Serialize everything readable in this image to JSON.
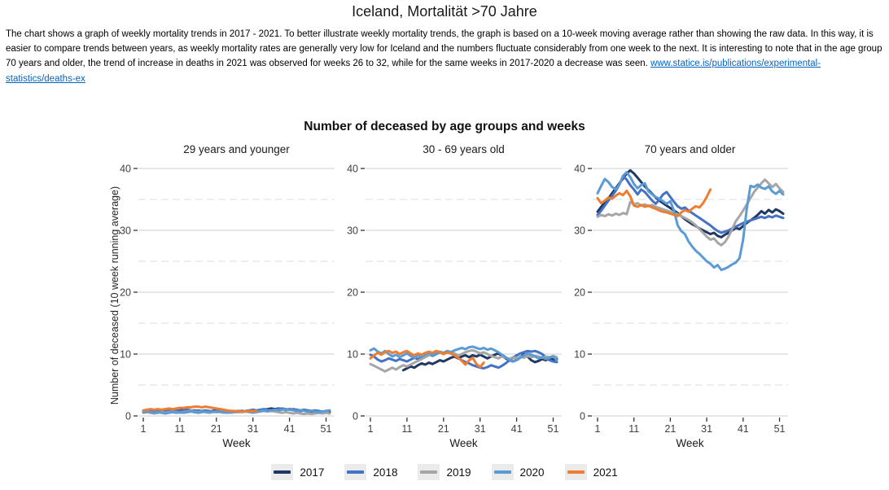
{
  "page": {
    "title": "Iceland, Mortalität >70 Jahre"
  },
  "description": {
    "text": "The chart shows a graph of weekly mortality trends in 2017 - 2021. To better illustrate weekly mortality trends, the graph is based on a 10-week moving average rather than showing the raw data. In this way, it is easier to compare trends between years, as weekly mortality rates are generally very low for Iceland and the numbers fluctuate considerably from one week to the next. It is interesting to note that in the age group 70 years and older, the trend of increase in deaths in 2021 was observed for weeks 26 to 32, while for the same weeks in 2017-2020 a decrease was seen. ",
    "link": "www.statice.is/publications/experimental-statistics/deaths-ex"
  },
  "legend": {
    "items": [
      {
        "label": "2017",
        "color": "#203864"
      },
      {
        "label": "2018",
        "color": "#4472C4"
      },
      {
        "label": "2019",
        "color": "#A6A6A6"
      },
      {
        "label": "2020",
        "color": "#5B9BD5"
      },
      {
        "label": "2021",
        "color": "#ED7D31"
      }
    ]
  },
  "chart_data": {
    "type": "line",
    "title": "Number of deceased by age groups and weeks",
    "xlabel": "Week",
    "ylabel": "Number of deceased (10 week running average)",
    "ylim": [
      0,
      40
    ],
    "y_ticks": [
      0,
      10,
      20,
      30,
      40
    ],
    "x_ticks": [
      1,
      11,
      21,
      31,
      41,
      51
    ],
    "x_range": [
      1,
      52
    ],
    "grid": {
      "major": "solid light gray",
      "minor": "dashed light gray at 5,15,25,35"
    },
    "legend_position": "bottom",
    "note": "values are 10-week running averages estimated from the plot",
    "panels": [
      {
        "label": "29 years and younger",
        "series": [
          {
            "name": "2017",
            "color": "#203864",
            "values": [
              0.7,
              0.8,
              0.7,
              0.8,
              0.9,
              0.8,
              0.7,
              0.8,
              0.9,
              0.8,
              0.9,
              1.0,
              0.9,
              0.8,
              0.9,
              0.8,
              0.7,
              0.8,
              0.7,
              0.8,
              0.9,
              0.8,
              0.7,
              0.8,
              0.7,
              0.6,
              0.7,
              0.8,
              0.7,
              0.8,
              0.9,
              0.8,
              0.9,
              1.0,
              1.1,
              1.2,
              1.1,
              1.2,
              1.1,
              1.0,
              1.1,
              1.0,
              0.9,
              0.8,
              0.9,
              0.8,
              0.7,
              0.6,
              0.7,
              0.6,
              0.7,
              0.6
            ]
          },
          {
            "name": "2018",
            "color": "#4472C4",
            "values": [
              0.8,
              0.9,
              0.8,
              0.7,
              0.8,
              0.7,
              0.8,
              0.9,
              0.8,
              0.9,
              0.8,
              0.9,
              1.0,
              0.9,
              0.8,
              0.9,
              0.8,
              0.9,
              0.8,
              0.7,
              0.8,
              0.9,
              0.8,
              0.7,
              0.8,
              0.7,
              0.8,
              0.7,
              0.8,
              0.9,
              1.0,
              0.9,
              1.0,
              1.1,
              1.0,
              0.9,
              1.0,
              1.1,
              1.2,
              1.1,
              1.0,
              1.1,
              1.0,
              0.9,
              1.0,
              0.9,
              0.8,
              0.9,
              0.8,
              0.7,
              0.8,
              0.9
            ]
          },
          {
            "name": "2019",
            "color": "#A6A6A6",
            "values": [
              0.5,
              0.6,
              0.5,
              0.4,
              0.5,
              0.6,
              0.5,
              0.6,
              0.7,
              0.6,
              0.5,
              0.6,
              0.7,
              0.8,
              0.7,
              0.6,
              0.7,
              0.6,
              0.5,
              0.6,
              0.7,
              0.6,
              0.5,
              0.6,
              0.5,
              0.6,
              0.7,
              0.6,
              0.7,
              0.6,
              0.5,
              0.6,
              0.7,
              0.8,
              0.7,
              0.8,
              0.7,
              0.6,
              0.5,
              0.6,
              0.5,
              0.4,
              0.5,
              0.4,
              0.3,
              0.4,
              0.3,
              0.4,
              0.5,
              0.4,
              0.5,
              0.4
            ]
          },
          {
            "name": "2020",
            "color": "#5B9BD5",
            "values": [
              0.6,
              0.7,
              0.6,
              0.5,
              0.6,
              0.5,
              0.4,
              0.5,
              0.6,
              0.5,
              0.6,
              0.5,
              0.6,
              0.7,
              0.6,
              0.5,
              0.6,
              0.7,
              0.6,
              0.7,
              0.6,
              0.7,
              0.6,
              0.5,
              0.6,
              0.7,
              0.6,
              0.7,
              0.8,
              0.7,
              0.6,
              0.7,
              0.8,
              0.9,
              0.8,
              0.9,
              1.0,
              0.9,
              1.0,
              1.1,
              1.0,
              0.9,
              0.8,
              0.9,
              0.8,
              0.7,
              0.8,
              0.7,
              0.6,
              0.7,
              0.8,
              0.9
            ]
          },
          {
            "name": "2021",
            "color": "#ED7D31",
            "values": [
              0.9,
              1.0,
              1.1,
              1.0,
              1.1,
              1.0,
              1.1,
              1.2,
              1.1,
              1.2,
              1.3,
              1.3,
              1.4,
              1.4,
              1.5,
              1.5,
              1.4,
              1.5,
              1.4,
              1.3,
              1.2,
              1.1,
              1.0,
              0.9,
              0.8,
              0.8,
              0.7,
              0.7,
              0.8,
              0.8,
              0.8,
              0.8
            ]
          }
        ]
      },
      {
        "label": "30 - 69 years old",
        "series": [
          {
            "name": "2017",
            "color": "#203864",
            "values": [
              null,
              null,
              null,
              null,
              null,
              null,
              null,
              null,
              null,
              7.4,
              7.7,
              8.0,
              7.8,
              8.2,
              8.5,
              8.3,
              8.6,
              8.4,
              8.7,
              9.0,
              8.8,
              9.1,
              9.4,
              9.6,
              9.3,
              9.6,
              9.8,
              9.5,
              9.8,
              9.6,
              9.9,
              9.6,
              9.3,
              9.6,
              9.9,
              10.1,
              9.7,
              9.3,
              9.0,
              8.8,
              9.1,
              9.5,
              10.0,
              9.6,
              9.0,
              8.7,
              8.9,
              9.2,
              9.0,
              9.3,
              9.1,
              9.2
            ]
          },
          {
            "name": "2018",
            "color": "#4472C4",
            "values": [
              9.9,
              9.6,
              9.1,
              8.8,
              9.0,
              9.3,
              9.1,
              8.9,
              9.2,
              9.0,
              8.8,
              9.1,
              9.4,
              9.2,
              9.5,
              9.8,
              10.0,
              9.7,
              10.0,
              10.3,
              10.1,
              10.4,
              10.1,
              9.8,
              9.4,
              9.0,
              8.7,
              8.5,
              8.2,
              8.0,
              7.8,
              7.7,
              7.9,
              8.2,
              8.0,
              7.8,
              8.1,
              8.5,
              9.0,
              9.4,
              9.8,
              10.1,
              10.3,
              10.5,
              10.4,
              10.5,
              10.3,
              10.0,
              9.5,
              9.0,
              8.8,
              8.7
            ]
          },
          {
            "name": "2019",
            "color": "#A6A6A6",
            "values": [
              8.4,
              8.1,
              7.8,
              7.5,
              7.2,
              7.5,
              7.8,
              7.5,
              7.9,
              8.2,
              8.0,
              8.3,
              8.6,
              8.9,
              9.2,
              9.5,
              9.8,
              10.2,
              10.5,
              10.3,
              10.0,
              10.2,
              10.4,
              10.1,
              9.8,
              10.0,
              10.3,
              10.5,
              10.6,
              10.4,
              10.1,
              10.3,
              10.0,
              9.7,
              9.5,
              9.3,
              9.6,
              9.4,
              9.2,
              9.5,
              9.3,
              9.6,
              9.4,
              9.7,
              9.5,
              9.7,
              9.6,
              9.4,
              9.6,
              9.5,
              9.7,
              9.5
            ]
          },
          {
            "name": "2020",
            "color": "#5B9BD5",
            "values": [
              10.6,
              10.9,
              10.4,
              10.1,
              10.5,
              10.0,
              9.6,
              9.9,
              9.5,
              9.8,
              10.1,
              9.7,
              9.4,
              9.8,
              9.5,
              9.9,
              10.2,
              9.8,
              10.1,
              10.4,
              10.2,
              10.5,
              10.3,
              10.6,
              10.8,
              11.0,
              10.8,
              11.1,
              11.2,
              11.0,
              10.8,
              11.0,
              10.7,
              10.9,
              10.6,
              10.3,
              9.9,
              9.5,
              9.1,
              8.8,
              9.0,
              9.4,
              9.8,
              10.1,
              9.9,
              9.6,
              9.3,
              9.5,
              9.2,
              9.4,
              9.6,
              9.0
            ]
          },
          {
            "name": "2021",
            "color": "#ED7D31",
            "values": [
              9.3,
              9.8,
              10.2,
              9.9,
              10.3,
              10.5,
              10.2,
              10.4,
              10.0,
              10.3,
              10.5,
              10.1,
              9.8,
              10.1,
              9.9,
              10.2,
              10.4,
              10.2,
              10.5,
              10.3,
              10.0,
              10.3,
              10.1,
              9.8,
              9.4,
              8.9,
              8.3,
              9.0,
              9.4,
              8.4,
              7.9,
              8.6
            ]
          }
        ]
      },
      {
        "label": "70 years and older",
        "series": [
          {
            "name": "2017",
            "color": "#203864",
            "values": [
              33.0,
              33.8,
              34.5,
              35.2,
              36.0,
              36.8,
              37.6,
              38.4,
              39.2,
              39.7,
              39.2,
              38.5,
              37.8,
              37.1,
              36.5,
              35.9,
              35.3,
              34.8,
              34.4,
              34.0,
              33.6,
              33.2,
              32.8,
              32.3,
              31.8,
              31.4,
              31.0,
              30.7,
              30.3,
              30.0,
              29.7,
              29.4,
              29.6,
              29.1,
              28.9,
              29.3,
              29.6,
              30.0,
              30.4,
              30.2,
              30.7,
              31.2,
              31.6,
              32.0,
              32.5,
              33.1,
              32.7,
              33.3,
              32.9,
              33.4,
              33.1,
              32.7
            ]
          },
          {
            "name": "2018",
            "color": "#4472C4",
            "values": [
              32.5,
              33.2,
              34.0,
              34.8,
              35.6,
              36.4,
              37.4,
              38.8,
              38.2,
              37.3,
              36.6,
              35.8,
              36.6,
              36.2,
              35.5,
              34.8,
              34.3,
              35.0,
              35.8,
              36.2,
              35.4,
              34.6,
              33.9,
              33.5,
              33.7,
              33.2,
              32.8,
              32.4,
              32.0,
              31.6,
              31.2,
              30.8,
              30.3,
              29.9,
              29.6,
              29.8,
              30.0,
              30.3,
              30.6,
              30.9,
              31.2,
              31.4,
              31.6,
              31.8,
              32.0,
              32.2,
              32.0,
              32.3,
              32.1,
              32.4,
              32.2,
              32.0
            ]
          },
          {
            "name": "2019",
            "color": "#A6A6A6",
            "values": [
              32.2,
              32.5,
              32.3,
              32.6,
              32.4,
              32.7,
              32.5,
              32.8,
              32.6,
              34.6,
              34.2,
              34.4,
              34.0,
              34.2,
              33.9,
              34.1,
              33.8,
              33.6,
              33.4,
              33.2,
              33.0,
              32.8,
              32.6,
              32.3,
              32.0,
              31.7,
              31.3,
              30.8,
              30.2,
              29.6,
              29.0,
              28.5,
              28.7,
              28.0,
              27.6,
              28.1,
              29.0,
              30.2,
              31.5,
              32.3,
              33.2,
              34.2,
              35.2,
              36.2,
              36.9,
              37.6,
              38.2,
              37.6,
              37.0,
              37.5,
              36.8,
              36.2
            ]
          },
          {
            "name": "2020",
            "color": "#5B9BD5",
            "values": [
              36.0,
              37.2,
              38.3,
              37.8,
              37.0,
              36.6,
              37.4,
              38.8,
              39.4,
              38.6,
              37.5,
              36.8,
              37.3,
              37.6,
              36.3,
              35.8,
              35.4,
              35.1,
              34.7,
              34.3,
              34.7,
              33.2,
              30.8,
              29.9,
              29.4,
              28.2,
              27.4,
              26.7,
              26.2,
              25.6,
              25.0,
              24.6,
              24.0,
              24.4,
              23.6,
              23.8,
              24.1,
              24.5,
              24.8,
              25.5,
              28.5,
              33.5,
              37.2,
              37.0,
              37.4,
              36.9,
              36.7,
              37.1,
              36.3,
              35.9,
              36.4,
              35.8
            ]
          },
          {
            "name": "2021",
            "color": "#ED7D31",
            "values": [
              35.2,
              34.4,
              34.8,
              35.3,
              35.1,
              35.6,
              36.0,
              35.7,
              36.4,
              35.5,
              34.0,
              33.8,
              34.1,
              33.8,
              34.0,
              33.7,
              33.5,
              33.2,
              33.0,
              32.9,
              32.7,
              32.5,
              32.3,
              32.9,
              33.3,
              33.0,
              33.5,
              33.9,
              33.7,
              34.4,
              35.4,
              36.6
            ]
          }
        ]
      }
    ]
  }
}
